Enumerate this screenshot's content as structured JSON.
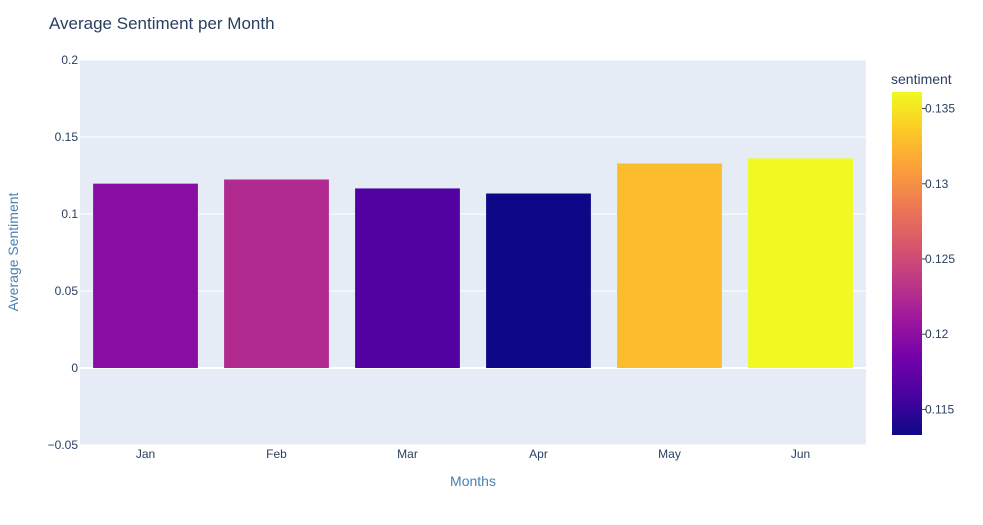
{
  "chart_data": {
    "type": "bar",
    "title": "Average Sentiment per Month",
    "xlabel": "Months",
    "ylabel": "Average Sentiment",
    "categories": [
      "Jan",
      "Feb",
      "Mar",
      "Apr",
      "May",
      "Jun"
    ],
    "values": [
      0.1197,
      0.1224,
      0.1166,
      0.1133,
      0.1328,
      0.1361
    ],
    "ylim": [
      -0.05,
      0.2
    ],
    "yticks": [
      -0.05,
      0,
      0.05,
      0.1,
      0.15,
      0.2
    ],
    "ytick_labels": [
      "−0.05",
      "0",
      "0.05",
      "0.1",
      "0.15",
      "0.2"
    ],
    "grid": true,
    "colorbar": {
      "title": "sentiment",
      "range": [
        0.1133,
        0.1361
      ],
      "ticks": [
        0.115,
        0.12,
        0.125,
        0.13,
        0.135
      ],
      "tick_labels": [
        "0.115",
        "0.12",
        "0.125",
        "0.13",
        "0.135"
      ],
      "colorscale": [
        "#0d0887",
        "#46039f",
        "#7201a8",
        "#9c179e",
        "#bd3786",
        "#d8576b",
        "#ed7953",
        "#fb9f3a",
        "#fdca26",
        "#f0f921"
      ]
    },
    "plot_background": "#e5ecf6",
    "grid_color": "#ffffff"
  }
}
